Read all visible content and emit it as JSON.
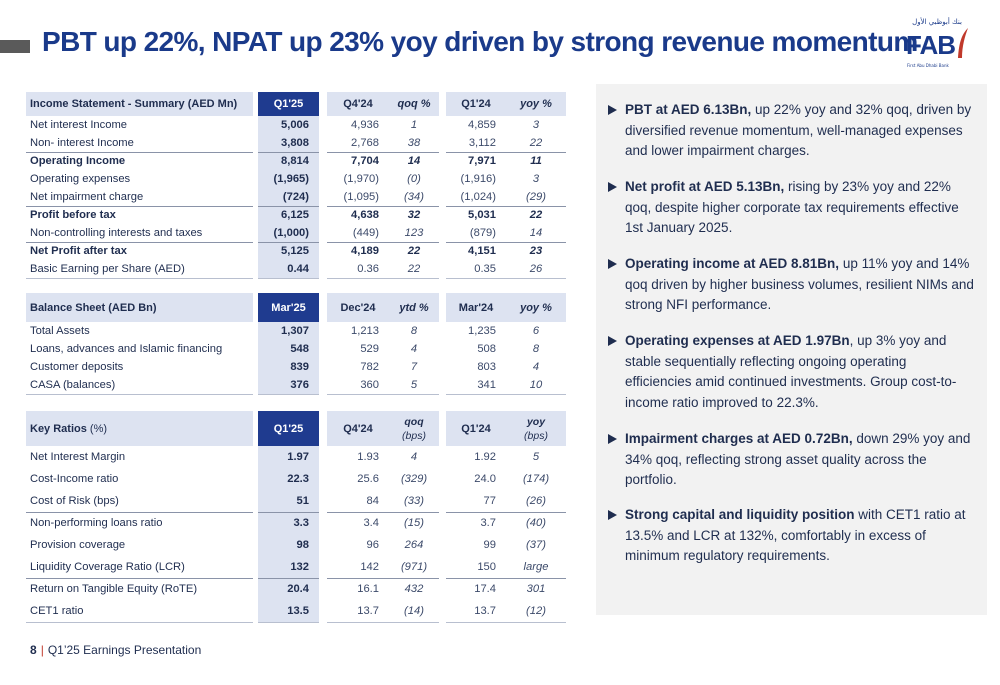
{
  "title": "PBT up 22%, NPAT up 23% yoy driven by strong revenue momentum",
  "logo": {
    "text": "FAB",
    "arabic": "بنك أبوظبي الأول",
    "subtitle": "First Abu Dhabi Bank",
    "brand_color": "#1a3a8a",
    "accent_color": "#c0392b"
  },
  "income": {
    "headers": [
      "Income Statement - Summary (AED Mn)",
      "Q1'25",
      "Q4'24",
      "qoq %",
      "Q1'24",
      "yoy %"
    ],
    "rows": [
      {
        "label": "Net interest Income",
        "q1": "5,006",
        "q4": "4,936",
        "qoq": "1",
        "py": "4,859",
        "yoy": "3"
      },
      {
        "label": "Non- interest Income",
        "q1": "3,808",
        "q4": "2,768",
        "qoq": "38",
        "py": "3,112",
        "yoy": "22"
      },
      {
        "label": "Operating Income",
        "q1": "8,814",
        "q4": "7,704",
        "qoq": "14",
        "py": "7,971",
        "yoy": "11"
      },
      {
        "label": "Operating expenses",
        "q1": "(1,965)",
        "q4": "(1,970)",
        "qoq": "(0)",
        "py": "(1,916)",
        "yoy": "3"
      },
      {
        "label": "Net impairment charge",
        "q1": "(724)",
        "q4": "(1,095)",
        "qoq": "(34)",
        "py": "(1,024)",
        "yoy": "(29)"
      },
      {
        "label": "Profit before tax",
        "q1": "6,125",
        "q4": "4,638",
        "qoq": "32",
        "py": "5,031",
        "yoy": "22"
      },
      {
        "label": "Non-controlling interests and taxes",
        "q1": "(1,000)",
        "q4": "(449)",
        "qoq": "123",
        "py": "(879)",
        "yoy": "14"
      },
      {
        "label": "Net Profit after tax",
        "q1": "5,125",
        "q4": "4,189",
        "qoq": "22",
        "py": "4,151",
        "yoy": "23"
      },
      {
        "label": "Basic Earning per Share (AED)",
        "q1": "0.44",
        "q4": "0.36",
        "qoq": "22",
        "py": "0.35",
        "yoy": "26"
      }
    ]
  },
  "balance": {
    "headers": [
      "Balance Sheet (AED Bn)",
      "Mar'25",
      "Dec'24",
      "ytd %",
      "Mar'24",
      "yoy %"
    ],
    "rows": [
      {
        "label": "Total Assets",
        "q1": "1,307",
        "q4": "1,213",
        "qoq": "8",
        "py": "1,235",
        "yoy": "6"
      },
      {
        "label": "Loans, advances and Islamic financing",
        "q1": "548",
        "q4": "529",
        "qoq": "4",
        "py": "508",
        "yoy": "8"
      },
      {
        "label": "Customer deposits",
        "q1": "839",
        "q4": "782",
        "qoq": "7",
        "py": "803",
        "yoy": "4"
      },
      {
        "label": "CASA (balances)",
        "q1": "376",
        "q4": "360",
        "qoq": "5",
        "py": "341",
        "yoy": "10"
      }
    ]
  },
  "ratios": {
    "headers": [
      "Key Ratios",
      "(%)",
      "Q1'25",
      "Q4'24",
      "qoq",
      "(bps)",
      "Q1'24",
      "yoy",
      "(bps)"
    ],
    "rows": [
      {
        "label": "Net Interest Margin",
        "q1": "1.97",
        "q4": "1.93",
        "qoq": "4",
        "py": "1.92",
        "yoy": "5"
      },
      {
        "label": "Cost-Income ratio",
        "q1": "22.3",
        "q4": "25.6",
        "qoq": "(329)",
        "py": "24.0",
        "yoy": "(174)"
      },
      {
        "label": "Cost of Risk (bps)",
        "q1": "51",
        "q4": "84",
        "qoq": "(33)",
        "py": "77",
        "yoy": "(26)"
      },
      {
        "label": "Non-performing loans ratio",
        "q1": "3.3",
        "q4": "3.4",
        "qoq": "(15)",
        "py": "3.7",
        "yoy": "(40)"
      },
      {
        "label": "Provision coverage",
        "q1": "98",
        "q4": "96",
        "qoq": "264",
        "py": "99",
        "yoy": "(37)"
      },
      {
        "label": "Liquidity Coverage Ratio (LCR)",
        "q1": "132",
        "q4": "142",
        "qoq": "(971)",
        "py": "150",
        "yoy": "large"
      },
      {
        "label": "Return on Tangible Equity (RoTE)",
        "q1": "20.4",
        "q4": "16.1",
        "qoq": "432",
        "py": "17.4",
        "yoy": "301"
      },
      {
        "label": "CET1 ratio",
        "q1": "13.5",
        "q4": "13.7",
        "qoq": "(14)",
        "py": "13.7",
        "yoy": "(12)"
      }
    ]
  },
  "bullets": [
    {
      "bold": "PBT at AED 6.13Bn,",
      "text": " up 22% yoy and 32% qoq, driven by diversified revenue momentum, well-managed expenses and lower impairment charges."
    },
    {
      "bold": "Net profit at AED 5.13Bn,",
      "text": " rising by 23% yoy and 22% qoq, despite higher corporate tax requirements effective 1st January 2025."
    },
    {
      "bold": "Operating income at AED 8.81Bn,",
      "text": " up 11% yoy and 14% qoq driven by higher business volumes, resilient NIMs and strong NFI performance."
    },
    {
      "bold": "Operating expenses at AED 1.97Bn",
      "text": ", up 3% yoy and stable sequentially reflecting ongoing operating efficiencies amid continued investments. Group cost-to-income ratio improved to 22.3%."
    },
    {
      "bold": "Impairment charges at AED 0.72Bn,",
      "text": " down 29% yoy and 34% qoq, reflecting strong asset quality across the portfolio."
    },
    {
      "bold": "Strong capital and liquidity position",
      "text": " with CET1 ratio at 13.5% and LCR at 132%, comfortably in excess of minimum regulatory requirements."
    }
  ],
  "footer": {
    "page": "8",
    "separator": "|",
    "label": "Q1’25 Earnings Presentation"
  }
}
